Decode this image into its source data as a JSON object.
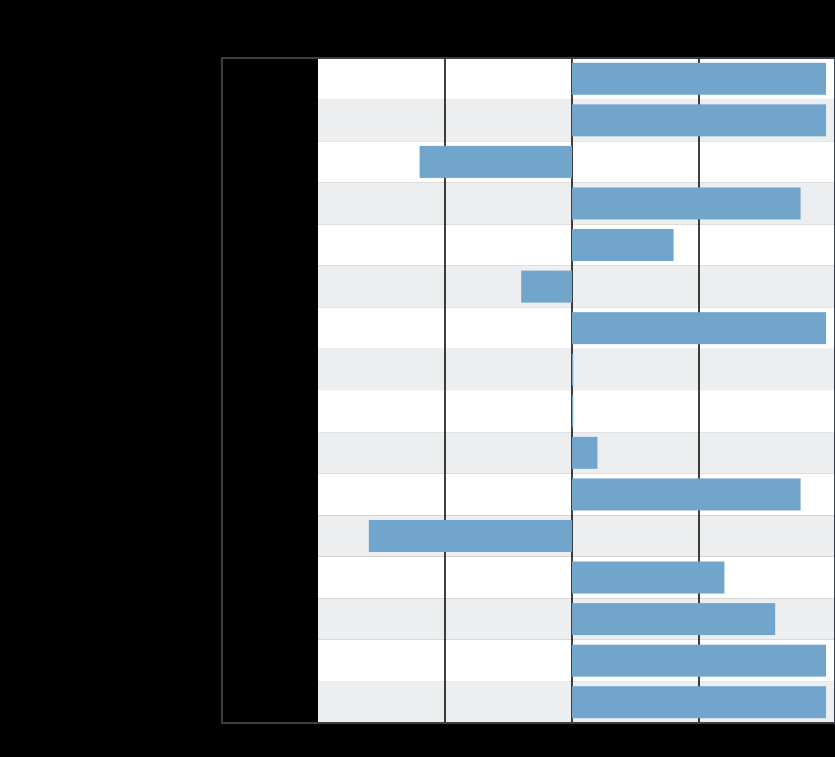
{
  "chart_data": {
    "type": "bar",
    "orientation": "horizontal",
    "title": "",
    "xlabel": "",
    "ylabel": "",
    "categories": [
      "",
      "",
      "",
      "",
      "",
      "",
      "",
      "",
      "",
      "",
      "",
      "",
      "",
      "",
      "",
      ""
    ],
    "values": [
      2,
      2,
      -1.2,
      1.8,
      0.8,
      -0.4,
      2,
      0.01,
      0.01,
      0.2,
      1.8,
      -1.6,
      1.2,
      1.6,
      2,
      2
    ],
    "xlim": [
      -2,
      2
    ],
    "grid": true,
    "legend": "none",
    "colors": {
      "background": "#000000",
      "bar": "#72a5cc",
      "band_light": "#ffffff",
      "band_dark": "#edeef0",
      "label_panel": "#000000",
      "frame": "#3a3f47",
      "gridline": "#000000"
    }
  }
}
